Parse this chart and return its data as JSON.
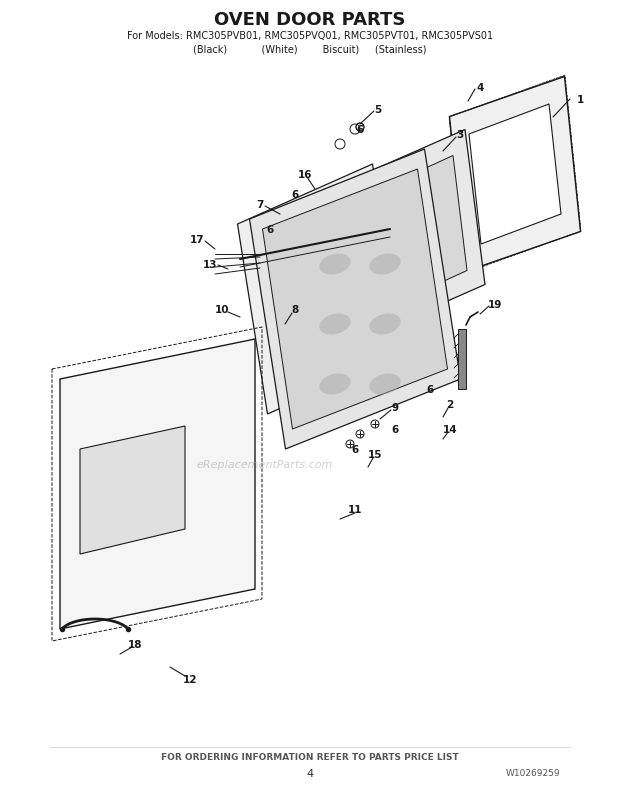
{
  "title": "OVEN DOOR PARTS",
  "subtitle": "For Models: RMC305PVB01, RMC305PVQ01, RMC305PVT01, RMC305PVS01",
  "subtitle2": "(Black)           (White)        Biscuit)     (Stainless)",
  "footer": "FOR ORDERING INFORMATION REFER TO PARTS PRICE LIST",
  "page_num": "4",
  "doc_num": "W10269259",
  "bg_color": "#ffffff",
  "line_color": "#1a1a1a",
  "part_labels": [
    1,
    2,
    3,
    4,
    5,
    6,
    7,
    8,
    9,
    10,
    11,
    12,
    13,
    14,
    15,
    16,
    17,
    18,
    19
  ],
  "watermark": "eReplacementParts.com"
}
